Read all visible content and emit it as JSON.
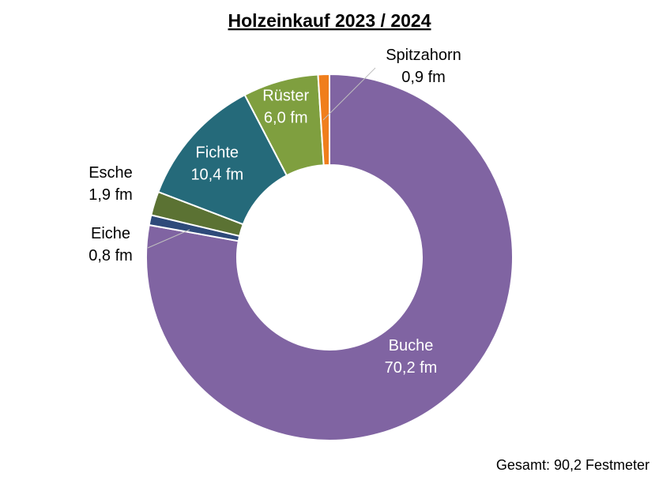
{
  "chart_data": {
    "type": "pie",
    "style": "donut",
    "title": "Holzeinkauf 2023 / 2024",
    "unit": "fm",
    "slices": [
      {
        "name": "Buche",
        "value": 70.2,
        "label": "70,2 fm",
        "color": "#8064A2",
        "label_color": "#ffffff"
      },
      {
        "name": "Eiche",
        "value": 0.8,
        "label": "0,8 fm",
        "color": "#2E4A7A",
        "label_color": "#000000"
      },
      {
        "name": "Esche",
        "value": 1.9,
        "label": "1,9 fm",
        "color": "#5B7233",
        "label_color": "#000000"
      },
      {
        "name": "Fichte",
        "value": 10.4,
        "label": "10,4 fm",
        "color": "#256A7A",
        "label_color": "#ffffff"
      },
      {
        "name": "Rüster",
        "value": 6.0,
        "label": "6,0 fm",
        "color": "#7F9F3F",
        "label_color": "#ffffff"
      },
      {
        "name": "Spitzahorn",
        "value": 0.9,
        "label": "0,9 fm",
        "color": "#F07E1C",
        "label_color": "#000000"
      }
    ],
    "legend": "none",
    "total_note": "Gesamt: 90,2 Festmeter"
  }
}
